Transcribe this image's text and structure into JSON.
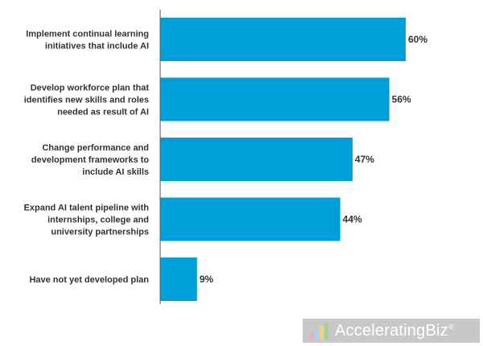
{
  "chart_data": {
    "type": "bar",
    "orientation": "horizontal",
    "categories": [
      [
        "Implement continual learning",
        "initiatives that include AI"
      ],
      [
        "Develop workforce plan that",
        "identifies new skills and roles",
        "needed as result of AI"
      ],
      [
        "Change performance and",
        "development frameworks to",
        "include AI skills"
      ],
      [
        "Expand AI talent pipeline with",
        "internships, college and",
        "university partnerships"
      ],
      [
        "Have not yet developed plan"
      ]
    ],
    "values": [
      60,
      56,
      47,
      44,
      9
    ],
    "value_labels": [
      "60%",
      "56%",
      "47%",
      "44%",
      "9%"
    ],
    "xlim": [
      0,
      60
    ],
    "bar_color": "#009fd9",
    "grid": false,
    "title": "",
    "xlabel": "",
    "ylabel": ""
  },
  "watermark": {
    "text": "AcceleratingBiz",
    "mark": "®",
    "background": "#c8c8c8"
  }
}
